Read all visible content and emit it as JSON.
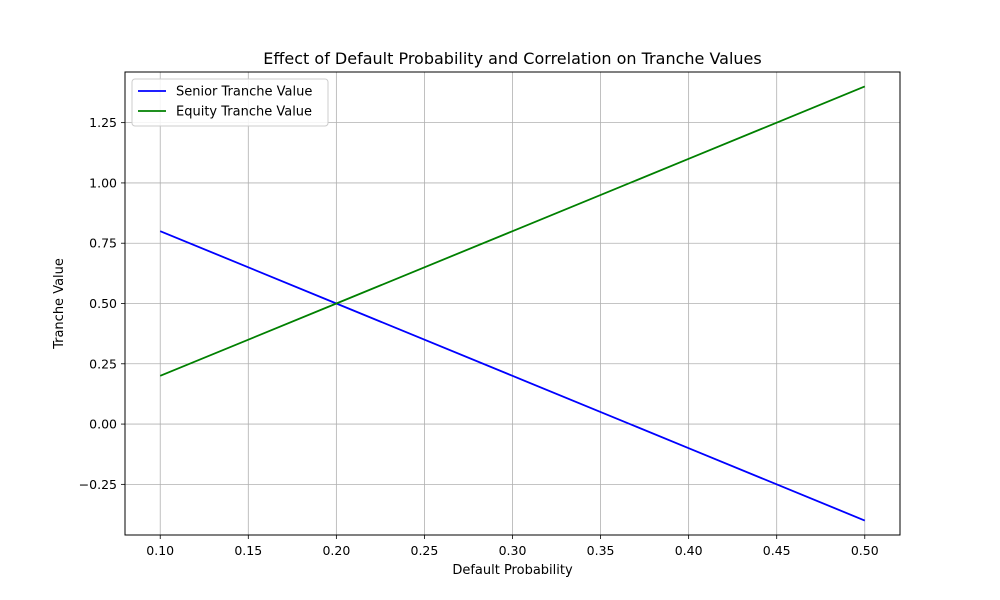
{
  "chart_data": {
    "type": "line",
    "title": "Effect of Default Probability and Correlation on Tranche Values",
    "xlabel": "Default Probability",
    "ylabel": "Tranche Value",
    "x": [
      0.1,
      0.2,
      0.3,
      0.4,
      0.5
    ],
    "xlim": [
      0.08,
      0.52
    ],
    "ylim": [
      -0.46,
      1.46
    ],
    "xticks": [
      0.1,
      0.15,
      0.2,
      0.25,
      0.3,
      0.35,
      0.4,
      0.45,
      0.5
    ],
    "xtick_labels": [
      "0.10",
      "0.15",
      "0.20",
      "0.25",
      "0.30",
      "0.35",
      "0.40",
      "0.45",
      "0.50"
    ],
    "yticks": [
      -0.25,
      0,
      0.25,
      0.5,
      0.75,
      1.0,
      1.25
    ],
    "ytick_labels": [
      "−0.25",
      "0.00",
      "0.25",
      "0.50",
      "0.75",
      "1.00",
      "1.25"
    ],
    "grid": true,
    "legend_position": "top-left",
    "series": [
      {
        "name": "Senior Tranche Value",
        "color": "#0000ff",
        "values": [
          0.8,
          0.5,
          0.2,
          -0.1,
          -0.4
        ]
      },
      {
        "name": "Equity Tranche Value",
        "color": "#008000",
        "values": [
          0.2,
          0.5,
          0.8,
          1.1,
          1.4
        ]
      }
    ]
  }
}
